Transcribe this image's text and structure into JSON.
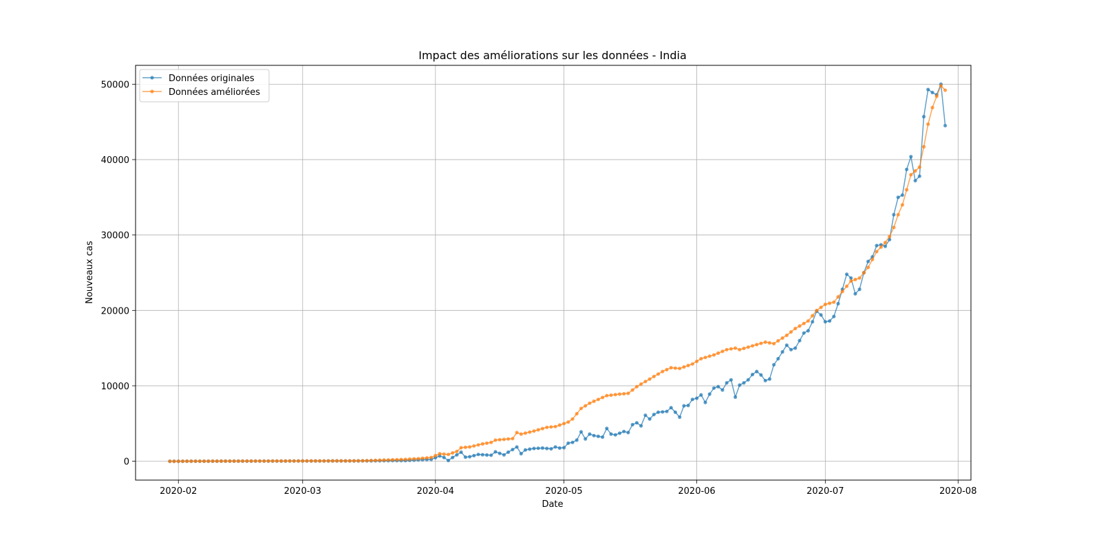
{
  "chart_data": {
    "type": "line",
    "title": "Impact des améliorations sur les données - India",
    "xlabel": "Date",
    "ylabel": "Nouveaux cas",
    "x_start": "2020-01-30",
    "x_end": "2020-07-27",
    "xlim": [
      "2020-01-22",
      "2020-08-04"
    ],
    "ylim": [
      -2500,
      52500
    ],
    "xticks": [
      "2020-02",
      "2020-03",
      "2020-04",
      "2020-05",
      "2020-06",
      "2020-07",
      "2020-08"
    ],
    "xtick_dates": [
      "2020-02-01",
      "2020-03-01",
      "2020-04-01",
      "2020-05-01",
      "2020-06-01",
      "2020-07-01",
      "2020-08-01"
    ],
    "yticks": [
      0,
      10000,
      20000,
      30000,
      40000,
      50000
    ],
    "grid": true,
    "legend_position": "top-left",
    "series": [
      {
        "name": "Données originales",
        "color": "#1f77b4",
        "anchors": [
          [
            "2020-01-30",
            0
          ],
          [
            "2020-03-15",
            50
          ],
          [
            "2020-03-25",
            90
          ],
          [
            "2020-03-31",
            250
          ],
          [
            "2020-04-02",
            700
          ],
          [
            "2020-04-03",
            500
          ],
          [
            "2020-04-04",
            100
          ],
          [
            "2020-04-05",
            500
          ],
          [
            "2020-04-07",
            1200
          ],
          [
            "2020-04-08",
            550
          ],
          [
            "2020-04-09",
            600
          ],
          [
            "2020-04-11",
            900
          ],
          [
            "2020-04-14",
            800
          ],
          [
            "2020-04-15",
            1250
          ],
          [
            "2020-04-17",
            850
          ],
          [
            "2020-04-20",
            1900
          ],
          [
            "2020-04-21",
            1000
          ],
          [
            "2020-04-22",
            1500
          ],
          [
            "2020-04-24",
            1700
          ],
          [
            "2020-04-26",
            1750
          ],
          [
            "2020-04-28",
            1650
          ],
          [
            "2020-04-29",
            1900
          ],
          [
            "2020-04-30",
            1750
          ],
          [
            "2020-05-01",
            1800
          ],
          [
            "2020-05-02",
            2400
          ],
          [
            "2020-05-03",
            2500
          ],
          [
            "2020-05-04",
            2800
          ],
          [
            "2020-05-05",
            3900
          ],
          [
            "2020-05-06",
            2950
          ],
          [
            "2020-05-07",
            3600
          ],
          [
            "2020-05-08",
            3400
          ],
          [
            "2020-05-10",
            3200
          ],
          [
            "2020-05-11",
            4350
          ],
          [
            "2020-05-12",
            3600
          ],
          [
            "2020-05-13",
            3500
          ],
          [
            "2020-05-15",
            3950
          ],
          [
            "2020-05-16",
            3800
          ],
          [
            "2020-05-17",
            4850
          ],
          [
            "2020-05-18",
            5100
          ],
          [
            "2020-05-19",
            4700
          ],
          [
            "2020-05-20",
            6100
          ],
          [
            "2020-05-21",
            5600
          ],
          [
            "2020-05-22",
            6200
          ],
          [
            "2020-05-23",
            6500
          ],
          [
            "2020-05-25",
            6600
          ],
          [
            "2020-05-26",
            7100
          ],
          [
            "2020-05-27",
            6500
          ],
          [
            "2020-05-28",
            5850
          ],
          [
            "2020-05-29",
            7350
          ],
          [
            "2020-05-30",
            7400
          ],
          [
            "2020-05-31",
            8200
          ],
          [
            "2020-06-01",
            8350
          ],
          [
            "2020-06-02",
            8800
          ],
          [
            "2020-06-03",
            7800
          ],
          [
            "2020-06-04",
            8900
          ],
          [
            "2020-06-05",
            9700
          ],
          [
            "2020-06-06",
            9900
          ],
          [
            "2020-06-07",
            9450
          ],
          [
            "2020-06-08",
            10400
          ],
          [
            "2020-06-09",
            10800
          ],
          [
            "2020-06-10",
            8500
          ],
          [
            "2020-06-11",
            10100
          ],
          [
            "2020-06-12",
            10400
          ],
          [
            "2020-06-13",
            10800
          ],
          [
            "2020-06-14",
            11500
          ],
          [
            "2020-06-15",
            11900
          ],
          [
            "2020-06-16",
            11450
          ],
          [
            "2020-06-17",
            10700
          ],
          [
            "2020-06-18",
            10900
          ],
          [
            "2020-06-19",
            12800
          ],
          [
            "2020-06-20",
            13600
          ],
          [
            "2020-06-21",
            14500
          ],
          [
            "2020-06-22",
            15400
          ],
          [
            "2020-06-23",
            14800
          ],
          [
            "2020-06-24",
            15000
          ],
          [
            "2020-06-25",
            16000
          ],
          [
            "2020-06-26",
            17000
          ],
          [
            "2020-06-27",
            17300
          ],
          [
            "2020-06-28",
            18500
          ],
          [
            "2020-06-29",
            19900
          ],
          [
            "2020-06-30",
            19400
          ],
          [
            "2020-07-01",
            18500
          ],
          [
            "2020-07-02",
            18600
          ],
          [
            "2020-07-03",
            19200
          ],
          [
            "2020-07-04",
            20900
          ],
          [
            "2020-07-05",
            22800
          ],
          [
            "2020-07-06",
            24800
          ],
          [
            "2020-07-07",
            24300
          ],
          [
            "2020-07-08",
            22200
          ],
          [
            "2020-07-09",
            22800
          ],
          [
            "2020-07-10",
            25000
          ],
          [
            "2020-07-11",
            26500
          ],
          [
            "2020-07-12",
            27100
          ],
          [
            "2020-07-13",
            28600
          ],
          [
            "2020-07-14",
            28700
          ],
          [
            "2020-07-15",
            28500
          ],
          [
            "2020-07-16",
            29400
          ],
          [
            "2020-07-17",
            32700
          ],
          [
            "2020-07-18",
            35000
          ],
          [
            "2020-07-19",
            35300
          ],
          [
            "2020-07-20",
            38700
          ],
          [
            "2020-07-21",
            40400
          ],
          [
            "2020-07-22",
            37200
          ],
          [
            "2020-07-23",
            37800
          ],
          [
            "2020-07-24",
            45700
          ],
          [
            "2020-07-25",
            49300
          ],
          [
            "2020-07-26",
            48900
          ],
          [
            "2020-07-27",
            48600
          ],
          [
            "2020-07-28",
            50000
          ],
          [
            "2020-07-29",
            44500
          ]
        ]
      },
      {
        "name": "Données améliorées",
        "color": "#ff7f0e",
        "anchors": [
          [
            "2020-01-30",
            0
          ],
          [
            "2020-03-15",
            60
          ],
          [
            "2020-03-20",
            150
          ],
          [
            "2020-03-25",
            250
          ],
          [
            "2020-03-28",
            350
          ],
          [
            "2020-03-31",
            500
          ],
          [
            "2020-04-02",
            1000
          ],
          [
            "2020-04-04",
            900
          ],
          [
            "2020-04-06",
            1300
          ],
          [
            "2020-04-07",
            1800
          ],
          [
            "2020-04-09",
            1900
          ],
          [
            "2020-04-12",
            2300
          ],
          [
            "2020-04-14",
            2500
          ],
          [
            "2020-04-15",
            2800
          ],
          [
            "2020-04-19",
            3000
          ],
          [
            "2020-04-20",
            3800
          ],
          [
            "2020-04-21",
            3600
          ],
          [
            "2020-04-24",
            4000
          ],
          [
            "2020-04-27",
            4500
          ],
          [
            "2020-04-29",
            4600
          ],
          [
            "2020-05-02",
            5200
          ],
          [
            "2020-05-03",
            5600
          ],
          [
            "2020-05-05",
            7000
          ],
          [
            "2020-05-07",
            7700
          ],
          [
            "2020-05-09",
            8200
          ],
          [
            "2020-05-11",
            8700
          ],
          [
            "2020-05-14",
            8900
          ],
          [
            "2020-05-16",
            9000
          ],
          [
            "2020-05-18",
            9900
          ],
          [
            "2020-05-21",
            10900
          ],
          [
            "2020-05-24",
            11900
          ],
          [
            "2020-05-26",
            12400
          ],
          [
            "2020-05-28",
            12300
          ],
          [
            "2020-05-31",
            12900
          ],
          [
            "2020-06-02",
            13600
          ],
          [
            "2020-06-05",
            14100
          ],
          [
            "2020-06-08",
            14800
          ],
          [
            "2020-06-10",
            15000
          ],
          [
            "2020-06-11",
            14800
          ],
          [
            "2020-06-14",
            15300
          ],
          [
            "2020-06-17",
            15800
          ],
          [
            "2020-06-19",
            15600
          ],
          [
            "2020-06-22",
            16700
          ],
          [
            "2020-06-24",
            17600
          ],
          [
            "2020-06-27",
            18600
          ],
          [
            "2020-06-29",
            20000
          ],
          [
            "2020-07-01",
            20800
          ],
          [
            "2020-07-03",
            21100
          ],
          [
            "2020-07-05",
            22500
          ],
          [
            "2020-07-07",
            23900
          ],
          [
            "2020-07-09",
            24300
          ],
          [
            "2020-07-11",
            25700
          ],
          [
            "2020-07-13",
            27800
          ],
          [
            "2020-07-15",
            29000
          ],
          [
            "2020-07-16",
            29800
          ],
          [
            "2020-07-17",
            31000
          ],
          [
            "2020-07-18",
            32700
          ],
          [
            "2020-07-19",
            34000
          ],
          [
            "2020-07-20",
            36000
          ],
          [
            "2020-07-21",
            38000
          ],
          [
            "2020-07-22",
            38500
          ],
          [
            "2020-07-23",
            39000
          ],
          [
            "2020-07-24",
            41700
          ],
          [
            "2020-07-25",
            44700
          ],
          [
            "2020-07-26",
            46900
          ],
          [
            "2020-07-27",
            48400
          ],
          [
            "2020-07-28",
            49800
          ],
          [
            "2020-07-29",
            49200
          ]
        ]
      }
    ]
  }
}
